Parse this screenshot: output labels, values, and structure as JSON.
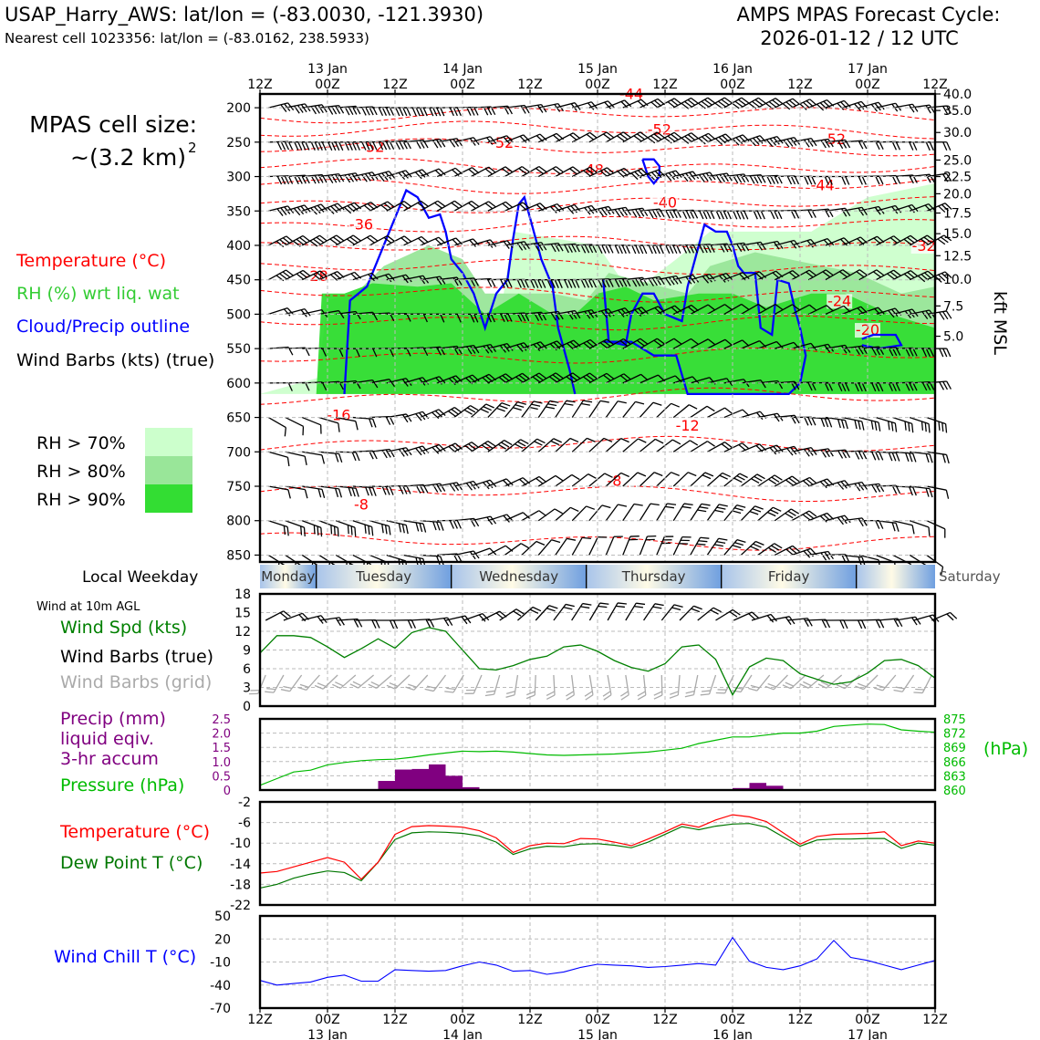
{
  "header": {
    "station_line": "USAP_Harry_AWS: lat/lon = (-83.0030, -121.3930)",
    "cell_line": "Nearest cell 1023356: lat/lon = (-83.0162, 238.5933)",
    "forecast_title": "AMPS MPAS Forecast Cycle:",
    "forecast_cycle": "2026-01-12 / 12 UTC"
  },
  "side_labels": {
    "cell_size_title": "MPAS cell size:",
    "cell_size_value": "~(3.2 km)",
    "cell_size_exp": "2",
    "temperature": "Temperature (°C)",
    "rh": "RH (%) wrt liq. wat",
    "cloud": "Cloud/Precip outline",
    "wind_barbs": "Wind Barbs (kts) (true)",
    "rh70": "RH > 70%",
    "rh80": "RH > 80%",
    "rh90": "RH > 90%",
    "local_weekday": "Local Weekday",
    "wind_10m": "Wind at 10m AGL",
    "wind_spd": "Wind Spd (kts)",
    "wind_barbs_true": "Wind Barbs (true)",
    "wind_barbs_grid": "Wind Barbs (grid)",
    "precip1": "Precip (mm)",
    "precip2": "liquid eqiv.",
    "precip3": "3-hr accum",
    "pressure": "Pressure (hPa)",
    "pressure_unit": "(hPa)",
    "temperature2": "Temperature (°C)",
    "dewpoint": "Dew Point T (°C)",
    "windchill": "Wind Chill T (°C)",
    "kft_msl": "kft MSL"
  },
  "colors": {
    "temp": "#ff0000",
    "rh": "#33cc33",
    "cloud": "#0000ff",
    "dew": "#007700",
    "wind": "#008000",
    "grid_barb": "#aaaaaa",
    "precip": "#800080",
    "pressure": "#00bb00",
    "chill": "#0000ff",
    "rh70": "#ccffcc",
    "rh80": "#99e699",
    "rh90": "#33dd33"
  },
  "chart_data": {
    "type": "line",
    "time_axis": {
      "hours_range": [
        0,
        120
      ],
      "tick_hours": [
        0,
        12,
        24,
        36,
        48,
        60,
        72,
        84,
        96,
        108,
        120
      ],
      "tick_labels": [
        "12Z",
        "00Z",
        "12Z",
        "00Z",
        "12Z",
        "00Z",
        "12Z",
        "00Z",
        "12Z",
        "00Z",
        "12Z"
      ],
      "date_labels": [
        {
          "hour": 12,
          "label": "13 Jan"
        },
        {
          "hour": 36,
          "label": "14 Jan"
        },
        {
          "hour": 60,
          "label": "15 Jan"
        },
        {
          "hour": 84,
          "label": "16 Jan"
        },
        {
          "hour": 108,
          "label": "17 Jan"
        }
      ]
    },
    "weekdays": [
      {
        "name": "Monday",
        "start": 0,
        "end": 10
      },
      {
        "name": "Tuesday",
        "start": 10,
        "end": 34
      },
      {
        "name": "Wednesday",
        "start": 34,
        "end": 58
      },
      {
        "name": "Thursday",
        "start": 58,
        "end": 82
      },
      {
        "name": "Friday",
        "start": 82,
        "end": 106
      },
      {
        "name": "Saturday",
        "start": 106,
        "end": 120
      }
    ],
    "profile": {
      "pressure_ticks": [
        200,
        250,
        300,
        350,
        400,
        450,
        500,
        550,
        600,
        650,
        700,
        750,
        800,
        850
      ],
      "pressure_range": [
        180,
        860
      ],
      "height_ticks": [
        {
          "p": 180,
          "label": "40.0"
        },
        {
          "p": 204,
          "label": "35.0"
        },
        {
          "p": 236,
          "label": "30.0"
        },
        {
          "p": 276,
          "label": "25.0"
        },
        {
          "p": 300,
          "label": "22.5"
        },
        {
          "p": 325,
          "label": "20.0"
        },
        {
          "p": 353,
          "label": "17.5"
        },
        {
          "p": 383,
          "label": "15.0"
        },
        {
          "p": 415,
          "label": "12.5"
        },
        {
          "p": 449,
          "label": "10.0"
        },
        {
          "p": 488,
          "label": "7.5"
        },
        {
          "p": 532,
          "label": "5.0"
        }
      ],
      "temp_contour_labels": [
        {
          "h": 66,
          "p": 187,
          "v": "-44"
        },
        {
          "h": 71,
          "p": 239,
          "v": "-52"
        },
        {
          "h": 20,
          "p": 264,
          "v": "-52"
        },
        {
          "h": 43,
          "p": 258,
          "v": "-52"
        },
        {
          "h": 102,
          "p": 253,
          "v": "-52"
        },
        {
          "h": 59,
          "p": 297,
          "v": "-48"
        },
        {
          "h": 100,
          "p": 320,
          "v": "-44"
        },
        {
          "h": 72,
          "p": 345,
          "v": "-40"
        },
        {
          "h": 18,
          "p": 377,
          "v": "-36"
        },
        {
          "h": 118,
          "p": 408,
          "v": "-32"
        },
        {
          "h": 10,
          "p": 452,
          "v": "-28"
        },
        {
          "h": 103,
          "p": 488,
          "v": "-24"
        },
        {
          "h": 108,
          "p": 530,
          "v": "-20"
        },
        {
          "h": 14,
          "p": 654,
          "v": "-16"
        },
        {
          "h": 76,
          "p": 669,
          "v": "-12"
        },
        {
          "h": 18,
          "p": 784,
          "v": "-8"
        },
        {
          "h": 63,
          "p": 749,
          "v": "-8"
        }
      ]
    },
    "wind10m": {
      "ylim": [
        0,
        18
      ],
      "yticks": [
        0,
        3,
        6,
        9,
        12,
        15,
        18
      ],
      "hours": [
        0,
        3,
        6,
        9,
        12,
        15,
        18,
        21,
        24,
        27,
        30,
        33,
        36,
        39,
        42,
        45,
        48,
        51,
        54,
        57,
        60,
        63,
        66,
        69,
        72,
        75,
        78,
        81,
        84,
        87,
        90,
        93,
        96,
        99,
        102,
        105,
        108,
        111,
        114,
        117,
        120
      ],
      "speed": [
        8.5,
        11.3,
        11.3,
        11,
        9.5,
        7.8,
        9.2,
        10.8,
        9.3,
        11.8,
        12.6,
        12.0,
        9.0,
        6.0,
        5.8,
        6.5,
        7.5,
        8.0,
        9.5,
        9.8,
        8.8,
        7.3,
        6.2,
        5.6,
        6.8,
        9.5,
        9.8,
        7.5,
        1.8,
        6.3,
        7.7,
        7.3,
        5.2,
        4.3,
        3.5,
        3.9,
        5.3,
        7.3,
        7.5,
        6.5,
        4.5
      ]
    },
    "precip": {
      "ylim": [
        0,
        2.5
      ],
      "yticks": [
        0,
        0.5,
        1.0,
        1.5,
        2.0,
        2.5
      ],
      "ytick_labels": [
        "0",
        "0.5",
        "1.0",
        "1.5",
        "2.0",
        "2.5"
      ],
      "bars": [
        {
          "h0": 21,
          "h1": 24,
          "v": 0.32
        },
        {
          "h0": 24,
          "h1": 27,
          "v": 0.72
        },
        {
          "h0": 27,
          "h1": 30,
          "v": 0.74
        },
        {
          "h0": 30,
          "h1": 33,
          "v": 0.9
        },
        {
          "h0": 33,
          "h1": 36,
          "v": 0.5
        },
        {
          "h0": 36,
          "h1": 39,
          "v": 0.1
        },
        {
          "h0": 84,
          "h1": 87,
          "v": 0.07
        },
        {
          "h0": 87,
          "h1": 90,
          "v": 0.25
        },
        {
          "h0": 90,
          "h1": 93,
          "v": 0.15
        }
      ]
    },
    "pressure": {
      "ylim": [
        860,
        875
      ],
      "yticks": [
        860,
        863,
        866,
        869,
        872,
        875
      ],
      "hours": [
        0,
        3,
        6,
        9,
        12,
        15,
        18,
        21,
        24,
        27,
        30,
        33,
        36,
        39,
        42,
        45,
        48,
        51,
        54,
        57,
        60,
        63,
        66,
        69,
        72,
        75,
        78,
        81,
        84,
        87,
        90,
        93,
        96,
        99,
        102,
        105,
        108,
        111,
        114,
        117,
        120
      ],
      "values": [
        861.0,
        862.4,
        863.8,
        864.2,
        865.3,
        865.8,
        866.2,
        866.4,
        866.5,
        866.9,
        867.4,
        867.8,
        868.2,
        868.1,
        868.2,
        868.0,
        867.7,
        867.4,
        867.3,
        867.4,
        867.5,
        867.6,
        867.8,
        868.0,
        868.4,
        868.8,
        869.8,
        870.5,
        871.2,
        871.2,
        871.6,
        872.0,
        872.0,
        872.4,
        873.4,
        873.7,
        873.9,
        873.8,
        872.7,
        872.4,
        872.2
      ]
    },
    "temperature": {
      "ylim": [
        -22,
        -2
      ],
      "yticks": [
        -22,
        -18,
        -14,
        -10,
        -6,
        -2
      ],
      "hours": [
        0,
        3,
        6,
        9,
        12,
        15,
        18,
        21,
        24,
        27,
        30,
        33,
        36,
        39,
        42,
        45,
        48,
        51,
        54,
        57,
        60,
        63,
        66,
        69,
        72,
        75,
        78,
        81,
        84,
        87,
        90,
        93,
        96,
        99,
        102,
        105,
        108,
        111,
        114,
        117,
        120
      ],
      "temp": [
        -15.8,
        -15.5,
        -14.6,
        -13.7,
        -12.8,
        -13.7,
        -17.0,
        -13.7,
        -8.3,
        -6.8,
        -6.6,
        -6.7,
        -6.9,
        -7.6,
        -9.0,
        -11.8,
        -10.5,
        -10.0,
        -10.1,
        -9.1,
        -9.2,
        -9.8,
        -10.5,
        -9.2,
        -7.8,
        -6.3,
        -6.9,
        -5.5,
        -4.5,
        -4.9,
        -5.8,
        -8.0,
        -10.2,
        -8.7,
        -8.3,
        -8.2,
        -8.1,
        -7.8,
        -10.5,
        -9.6,
        -10.0
      ],
      "dew": [
        -18.7,
        -18.0,
        -16.8,
        -16.0,
        -15.4,
        -15.7,
        -17.3,
        -13.7,
        -9.3,
        -8.0,
        -7.8,
        -7.9,
        -8.1,
        -8.6,
        -9.8,
        -12.2,
        -11.1,
        -10.6,
        -10.7,
        -10.2,
        -10.1,
        -10.4,
        -10.9,
        -9.8,
        -8.3,
        -6.8,
        -7.4,
        -6.7,
        -6.3,
        -6.2,
        -6.9,
        -8.8,
        -10.6,
        -9.4,
        -9.2,
        -9.2,
        -9.1,
        -9.1,
        -11.0,
        -10.0,
        -10.4
      ]
    },
    "windchill": {
      "ylim": [
        -70,
        50
      ],
      "yticks": [
        -70,
        -40,
        -10,
        20,
        50
      ],
      "hours": [
        0,
        3,
        6,
        9,
        12,
        15,
        18,
        21,
        24,
        27,
        30,
        33,
        36,
        39,
        42,
        45,
        48,
        51,
        54,
        57,
        60,
        63,
        66,
        69,
        72,
        75,
        78,
        81,
        84,
        87,
        90,
        93,
        96,
        99,
        102,
        105,
        108,
        111,
        114,
        117,
        120
      ],
      "values": [
        -34,
        -40,
        -38,
        -36,
        -30,
        -27,
        -35,
        -35,
        -20,
        -21,
        -22,
        -21,
        -15,
        -10,
        -14,
        -22,
        -21,
        -26,
        -23,
        -17,
        -13,
        -14,
        -15,
        -17,
        -16,
        -14,
        -12,
        -14,
        22,
        -9,
        -17,
        -20,
        -15,
        -6,
        18,
        -4,
        -8,
        -14,
        -20,
        -14,
        -8
      ]
    }
  }
}
